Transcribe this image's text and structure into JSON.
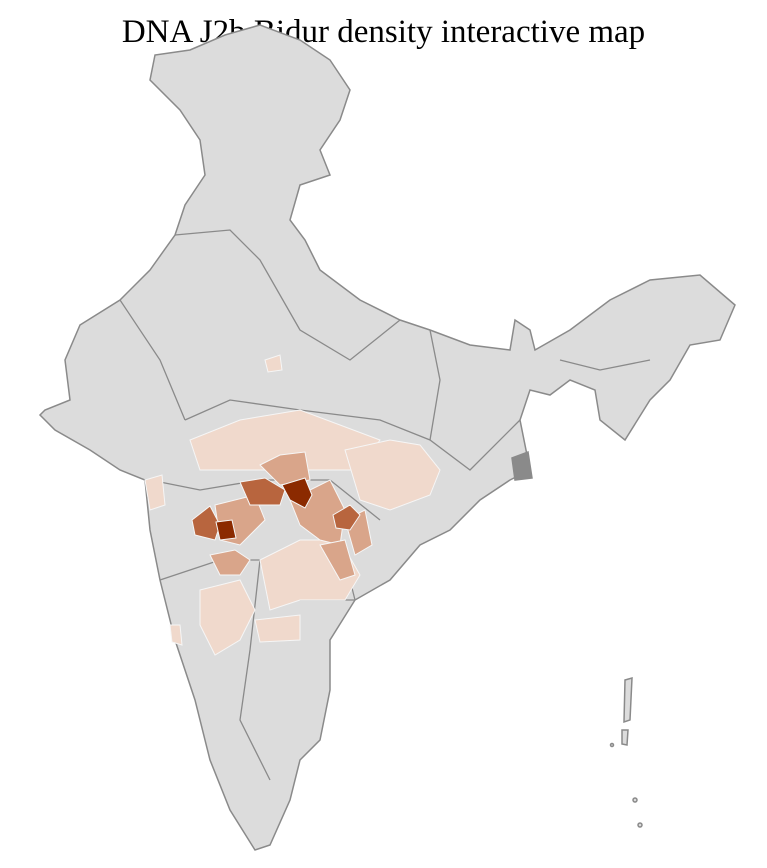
{
  "title": "DNA J2b Bidur density interactive map",
  "map": {
    "region": "India",
    "colors": {
      "background": "#dcdcdc",
      "border": "#8a8a8a",
      "density_low": "#f0d9cc",
      "density_mid": "#d9a58a",
      "density_high": "#b8653e",
      "density_max": "#8b2a00"
    }
  }
}
